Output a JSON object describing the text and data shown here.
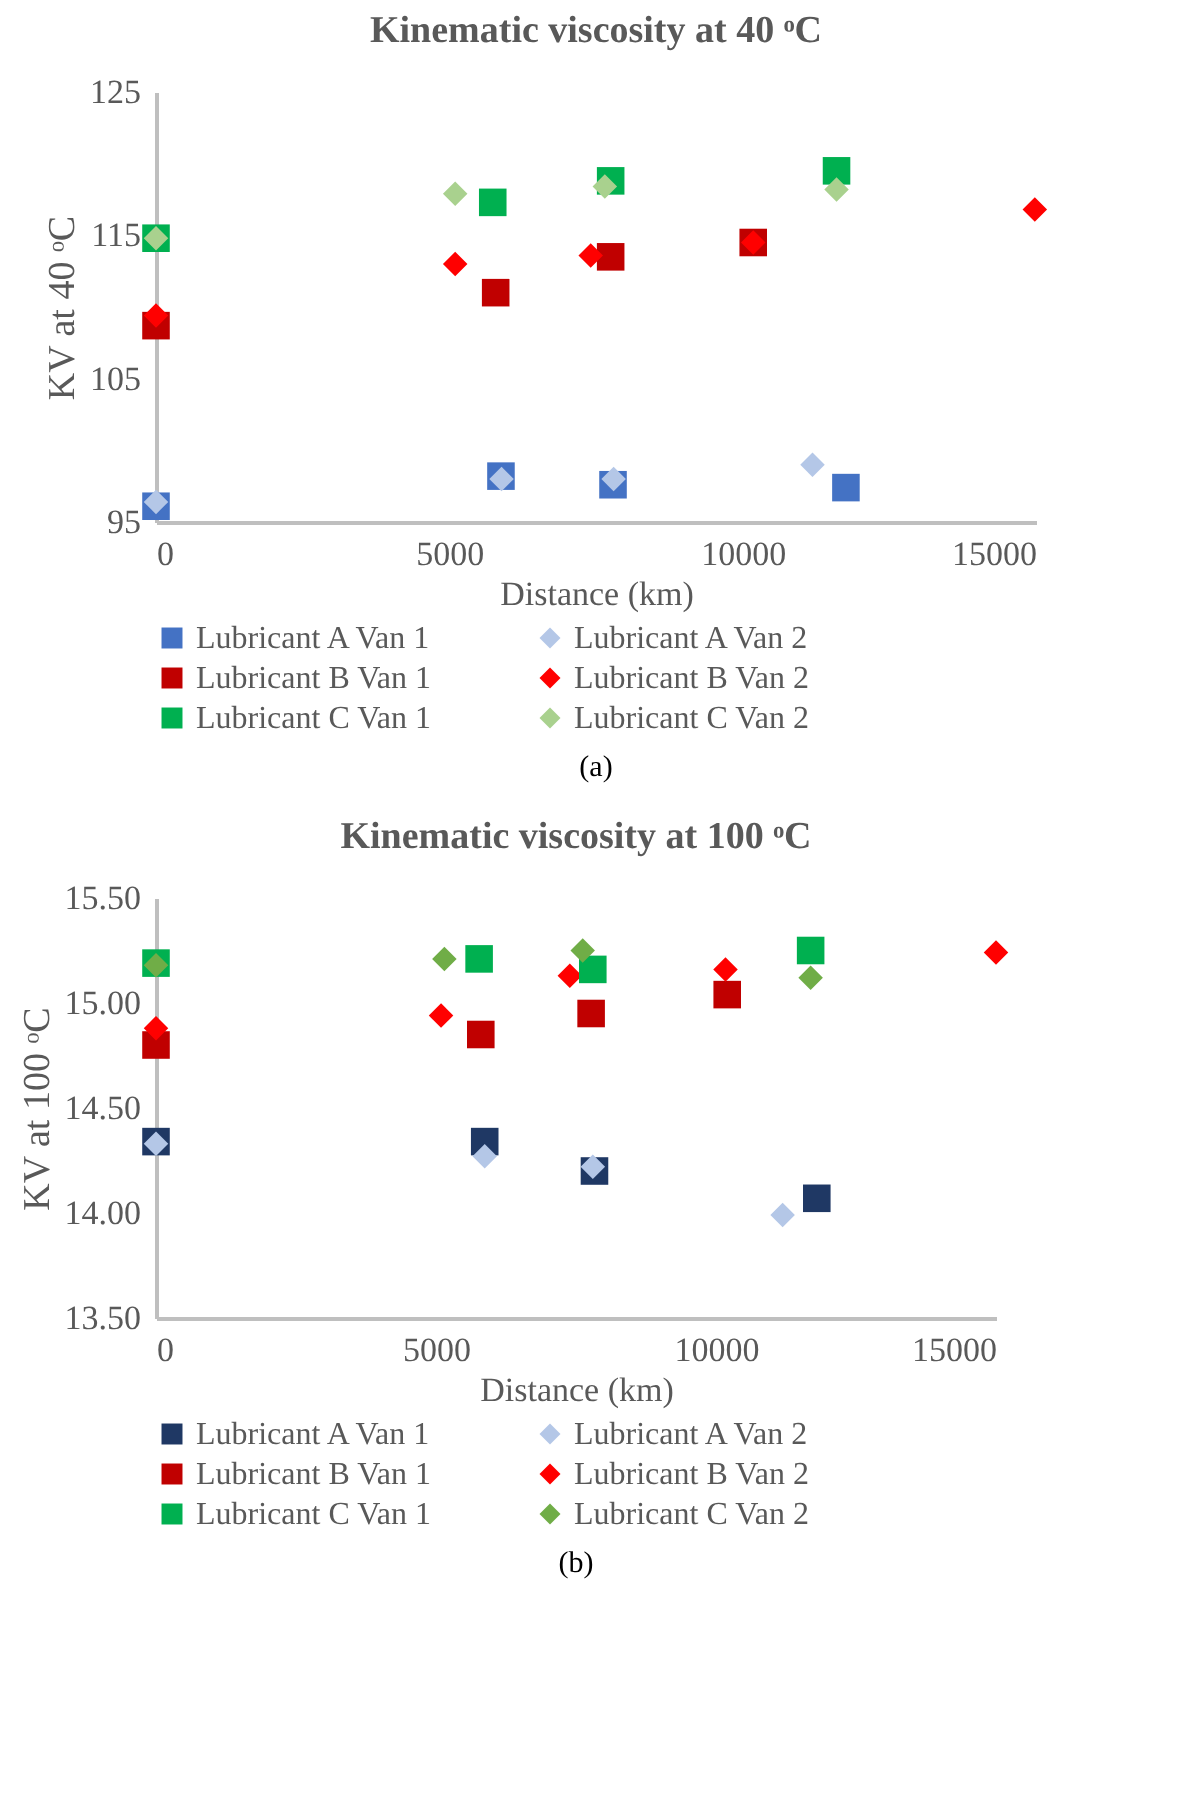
{
  "chart_data": [
    {
      "type": "scatter",
      "title": "Kinematic viscosity at 40 ᵒC",
      "xlabel": "Distance (km)",
      "ylabel": "KV at 40 ᵒC",
      "xlim": [
        0,
        15000
      ],
      "xticks": [
        0,
        5000,
        10000,
        15000
      ],
      "ylim": [
        95,
        125
      ],
      "yticks": [
        95,
        105,
        115,
        125
      ],
      "grid": false,
      "legend": "bottom",
      "annotations": [
        "(a)"
      ],
      "series": [
        {
          "name": "Lubricant A Van 1",
          "color": "#4472c4",
          "marker": "square",
          "x": [
            0,
            5880,
            7790,
            11760
          ],
          "values": [
            96.1,
            98.2,
            97.6,
            97.4
          ]
        },
        {
          "name": "Lubricant A Van 2",
          "color": "#b4c7e7",
          "marker": "diamond",
          "x": [
            0,
            5890,
            7800,
            11190
          ],
          "values": [
            96.4,
            98.0,
            98.0,
            99.0
          ]
        },
        {
          "name": "Lubricant B Van 1",
          "color": "#c00000",
          "marker": "square",
          "x": [
            0,
            5790,
            7750,
            10180
          ],
          "values": [
            108.7,
            111.0,
            113.5,
            114.5
          ]
        },
        {
          "name": "Lubricant B Van 2",
          "color": "#ff0000",
          "marker": "diamond",
          "x": [
            0,
            5100,
            7410,
            10180,
            14980
          ],
          "values": [
            109.4,
            113.0,
            113.6,
            114.5,
            116.8
          ]
        },
        {
          "name": "Lubricant C Van 1",
          "color": "#00b050",
          "marker": "square",
          "x": [
            0,
            5740,
            7750,
            11600
          ],
          "values": [
            114.8,
            117.3,
            118.8,
            119.5
          ]
        },
        {
          "name": "Lubricant C Van 2",
          "color": "#a9d18e",
          "marker": "diamond",
          "x": [
            0,
            5100,
            7650,
            11600
          ],
          "values": [
            114.8,
            117.9,
            118.4,
            118.2
          ]
        }
      ]
    },
    {
      "type": "scatter",
      "title": "Kinematic viscosity at 100 ᵒC",
      "xlabel": "Distance (km)",
      "ylabel": "KV at 100 ᵒC",
      "xlim": [
        0,
        15000
      ],
      "xticks": [
        0,
        5000,
        10000,
        15000
      ],
      "ylim": [
        13.5,
        15.5
      ],
      "yticks": [
        {
          "value": 13.5,
          "label": "13.50"
        },
        {
          "value": 14.0,
          "label": "14.00"
        },
        {
          "value": 14.5,
          "label": "14.50"
        },
        {
          "value": 15.0,
          "label": "15.00"
        },
        {
          "value": 15.5,
          "label": "15.50"
        }
      ],
      "grid": false,
      "legend": "bottom",
      "annotations": [
        "(b)"
      ],
      "series": [
        {
          "name": "Lubricant A Van 1",
          "color": "#1f3864",
          "marker": "square",
          "x": [
            0,
            5870,
            7830,
            11800
          ],
          "values": [
            14.34,
            14.34,
            14.2,
            14.07
          ]
        },
        {
          "name": "Lubricant A Van 2",
          "color": "#b4c7e7",
          "marker": "diamond",
          "x": [
            0,
            5870,
            7800,
            11190
          ],
          "values": [
            14.33,
            14.27,
            14.22,
            13.99
          ]
        },
        {
          "name": "Lubricant B Van 1",
          "color": "#c00000",
          "marker": "square",
          "x": [
            0,
            5800,
            7770,
            10200
          ],
          "values": [
            14.8,
            14.85,
            14.95,
            15.04
          ]
        },
        {
          "name": "Lubricant B Van 2",
          "color": "#ff0000",
          "marker": "diamond",
          "x": [
            0,
            5090,
            7390,
            10170,
            15000
          ],
          "values": [
            14.88,
            14.94,
            15.13,
            15.16,
            15.24
          ]
        },
        {
          "name": "Lubricant C Van 1",
          "color": "#00b050",
          "marker": "square",
          "x": [
            0,
            5770,
            7800,
            11690
          ],
          "values": [
            15.19,
            15.21,
            15.16,
            15.25
          ]
        },
        {
          "name": "Lubricant C Van 2",
          "color": "#70ad47",
          "marker": "diamond",
          "x": [
            0,
            5150,
            7620,
            11690
          ],
          "values": [
            15.18,
            15.21,
            15.25,
            15.12
          ]
        }
      ]
    }
  ]
}
